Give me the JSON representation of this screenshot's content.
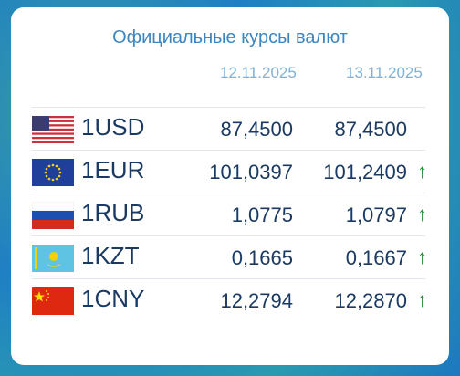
{
  "title": "Официальные курсы валют",
  "dates": [
    "12.11.2025",
    "13.11.2025"
  ],
  "rows": [
    {
      "code": "1USD",
      "rate1": "87,4500",
      "rate2": "87,4500"
    },
    {
      "code": "1EUR",
      "rate1": "101,0397",
      "rate2": "101,2409",
      "trend": "↑"
    },
    {
      "code": "1RUB",
      "rate1": "1,0775",
      "rate2": "1,0797",
      "trend": "↑"
    },
    {
      "code": "1KZT",
      "rate1": "0,1665",
      "rate2": "0,1667",
      "trend": "↑"
    },
    {
      "code": "1CNY",
      "rate1": "12,2794",
      "rate2": "12,2870",
      "trend": "↑"
    }
  ]
}
